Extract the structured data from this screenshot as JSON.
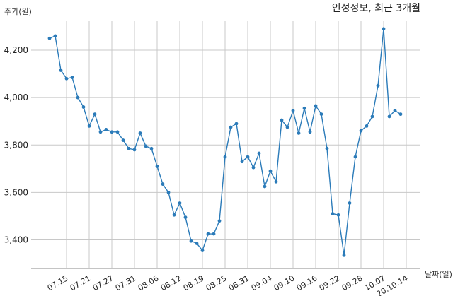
{
  "chart_data": {
    "type": "line",
    "title": "인성정보, 최근 3개월",
    "ylabel": "주가(원)",
    "xlabel": "날짜(일)",
    "ylim": [
      3280,
      4340
    ],
    "yticks": [
      3400,
      3600,
      3800,
      4000,
      4200
    ],
    "ytick_labels": [
      "3,400",
      "3,600",
      "3,800",
      "4,000",
      "4,200"
    ],
    "xtick_labels": [
      "07.15",
      "07.21",
      "07.27",
      "07.31",
      "08.06",
      "08.12",
      "08.19",
      "08.25",
      "08.31",
      "09.04",
      "09.10",
      "09.16",
      "09.22",
      "09.28",
      "10.07",
      "20.10.14"
    ],
    "xtick_index": [
      3,
      7,
      11,
      15,
      19,
      23,
      27,
      31,
      35,
      39,
      43,
      47,
      51,
      55,
      59,
      63
    ],
    "grid": true,
    "line_color": "#2b7bb9",
    "series": [
      {
        "values": [
          4250,
          4260,
          4115,
          4080,
          4085,
          4000,
          3960,
          3880,
          3930,
          3855,
          3865,
          3855,
          3855,
          3820,
          3785,
          3780,
          3850,
          3795,
          3785,
          3710,
          3635,
          3600,
          3505,
          3555,
          3495,
          3395,
          3385,
          3355,
          3425,
          3425,
          3480,
          3750,
          3875,
          3890,
          3730,
          3750,
          3705,
          3765,
          3625,
          3690,
          3645,
          3905,
          3875,
          3945,
          3850,
          3955,
          3855,
          3965,
          3930,
          3785,
          3510,
          3505,
          3335,
          3555,
          3750,
          3860,
          3880,
          3920,
          4050,
          4290,
          3920,
          3945,
          3930
        ]
      }
    ]
  }
}
